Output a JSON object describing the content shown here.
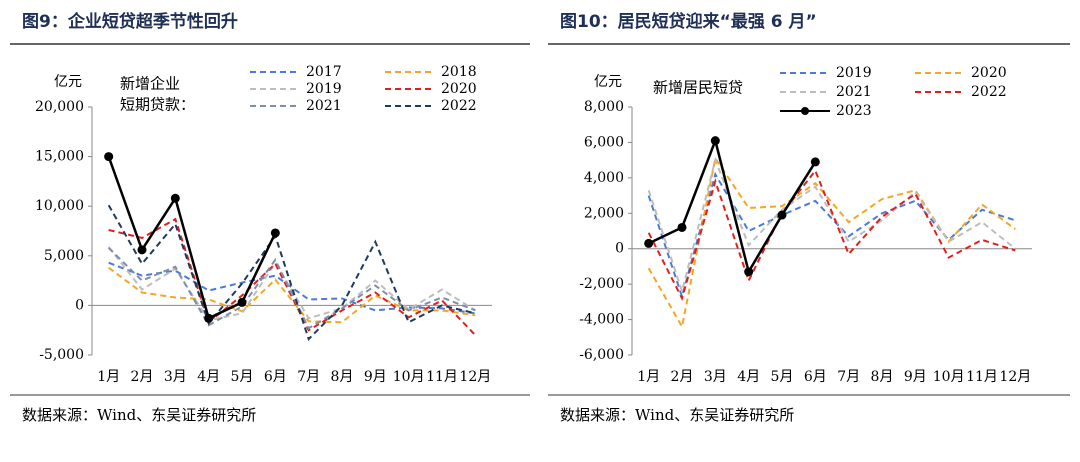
{
  "chart_data": [
    {
      "type": "line",
      "title": "图9：企业短贷超季节性回升",
      "y_label": "亿元",
      "annotation": [
        "新增企业",
        "短期贷款："
      ],
      "source": "数据来源：Wind、东吴证券研究所",
      "categories": [
        "1月",
        "2月",
        "3月",
        "4月",
        "5月",
        "6月",
        "7月",
        "8月",
        "9月",
        "10月",
        "11月",
        "12月"
      ],
      "ylim": [
        -5000,
        20000
      ],
      "yticks": [
        {
          "value": -5000,
          "label": "-5,000"
        },
        0,
        {
          "value": 5000,
          "label": "5,000"
        },
        {
          "value": 10000,
          "label": "10,000"
        },
        {
          "value": 15000,
          "label": "15,000"
        },
        {
          "value": 20000,
          "label": "20,000"
        }
      ],
      "series": [
        {
          "name": "2017",
          "color": "#4a7bd8",
          "style": "dashed",
          "values": [
            4300,
            3000,
            3500,
            1500,
            2300,
            3000,
            600,
            700,
            -500,
            -200,
            -300,
            -800
          ]
        },
        {
          "name": "2018",
          "color": "#f5a623",
          "style": "dashed",
          "values": [
            3800,
            1300,
            800,
            600,
            -600,
            2600,
            -1600,
            -1700,
            1000,
            -500,
            -500,
            -1000
          ]
        },
        {
          "name": "2019",
          "color": "#bdbdbd",
          "style": "dashed",
          "values": [
            5900,
            1600,
            3700,
            -1500,
            -800,
            4300,
            -1300,
            -300,
            2500,
            -400,
            1600,
            -500
          ]
        },
        {
          "name": "2020",
          "color": "#e02020",
          "style": "dashed",
          "values": [
            7600,
            6800,
            8700,
            -1700,
            1000,
            4200,
            -2500,
            -500,
            1300,
            -1200,
            500,
            -3000
          ]
        },
        {
          "name": "2021",
          "color": "#7f8fa6",
          "style": "dashed",
          "values": [
            5800,
            2500,
            3900,
            -2000,
            -100,
            4600,
            -2300,
            -300,
            2000,
            -500,
            800,
            -500
          ]
        },
        {
          "name": "2022",
          "color": "#1f3a5a",
          "style": "dashed",
          "values": [
            10100,
            4200,
            8200,
            -1800,
            2200,
            7000,
            -3400,
            0,
            6400,
            -1700,
            0,
            -800
          ]
        },
        {
          "color": "#000000",
          "style": "solid",
          "marker": true,
          "values": [
            15000,
            5600,
            10800,
            -1300,
            300,
            7300,
            null,
            null,
            null,
            null,
            null,
            null
          ]
        }
      ]
    },
    {
      "type": "line",
      "title": "图10：居民短贷迎来“最强 6 月”",
      "y_label": "亿元",
      "annotation": [
        "新增居民短贷"
      ],
      "source": "数据来源：Wind、东吴证券研究所",
      "categories": [
        "1月",
        "2月",
        "3月",
        "4月",
        "5月",
        "6月",
        "7月",
        "8月",
        "9月",
        "10月",
        "11月",
        "12月"
      ],
      "ylim": [
        -6000,
        8000
      ],
      "yticks": [
        {
          "value": -6000,
          "label": "-6,000"
        },
        {
          "value": -4000,
          "label": "-4,000"
        },
        {
          "value": -2000,
          "label": "-2,000"
        },
        0,
        {
          "value": 2000,
          "label": "2,000"
        },
        {
          "value": 4000,
          "label": "4,000"
        },
        {
          "value": 6000,
          "label": "6,000"
        },
        {
          "value": 8000,
          "label": "8,000"
        }
      ],
      "series": [
        {
          "name": "2019",
          "color": "#4a7bd8",
          "style": "dashed",
          "values": [
            3000,
            -2700,
            4200,
            1000,
            1900,
            2700,
            700,
            2000,
            2700,
            500,
            2200,
            1600
          ]
        },
        {
          "name": "2020",
          "color": "#f5a623",
          "style": "dashed",
          "values": [
            -1100,
            -4400,
            5100,
            2300,
            2400,
            3700,
            1500,
            2800,
            3300,
            400,
            2500,
            1100
          ]
        },
        {
          "name": "2021",
          "color": "#bdbdbd",
          "style": "dashed",
          "values": [
            3300,
            -2400,
            5000,
            200,
            2200,
            3500,
            400,
            1600,
            3200,
            400,
            1500,
            0
          ]
        },
        {
          "name": "2022",
          "color": "#e02020",
          "style": "dashed",
          "values": [
            900,
            -2800,
            3800,
            -1800,
            2000,
            4400,
            -300,
            1800,
            3100,
            -500,
            500,
            -100
          ]
        },
        {
          "name": "2023",
          "color": "#000000",
          "style": "solid",
          "marker": true,
          "values": [
            300,
            1200,
            6100,
            -1300,
            1900,
            4900,
            null,
            null,
            null,
            null,
            null,
            null
          ]
        }
      ]
    }
  ]
}
